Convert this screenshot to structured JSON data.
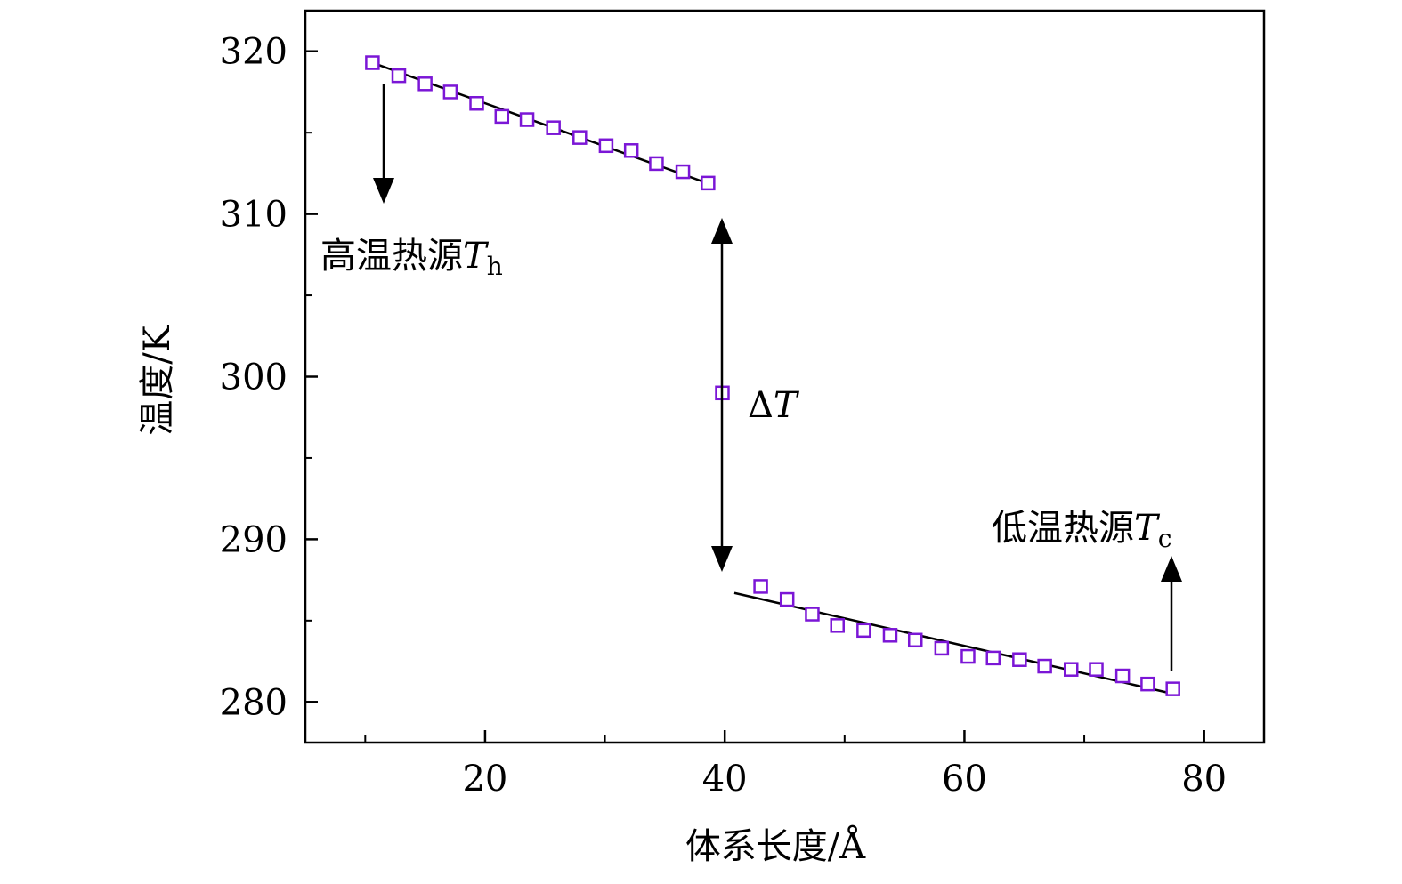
{
  "chart_data": {
    "type": "scatter",
    "xlabel": "体系长度/Å",
    "ylabel": "温度/K",
    "xlim": [
      5,
      85
    ],
    "ylim": [
      277.5,
      322.5
    ],
    "x_ticks": [
      20,
      40,
      60,
      80
    ],
    "x_tick_labels": [
      "20",
      "40",
      "60",
      "80"
    ],
    "x_minor_ticks": [
      10,
      30,
      50,
      70
    ],
    "y_ticks": [
      280,
      290,
      300,
      310,
      320
    ],
    "y_tick_labels": [
      "280",
      "290",
      "300",
      "310",
      "320"
    ],
    "y_minor_ticks": [
      285,
      295,
      305,
      315
    ],
    "grid": false,
    "marker": "open-square",
    "colors": {
      "marker": "#7B16D6",
      "line": "#000000",
      "axis": "#000000"
    },
    "series": [
      {
        "points": [
          [
            10.6,
            319.3
          ],
          [
            12.8,
            318.5
          ],
          [
            15.0,
            318.0
          ],
          [
            17.1,
            317.5
          ],
          [
            19.3,
            316.8
          ],
          [
            21.4,
            316.0
          ],
          [
            23.5,
            315.8
          ],
          [
            25.7,
            315.3
          ],
          [
            27.9,
            314.7
          ],
          [
            30.1,
            314.2
          ],
          [
            32.2,
            313.9
          ],
          [
            34.3,
            313.1
          ],
          [
            36.5,
            312.6
          ],
          [
            38.6,
            311.9
          ],
          [
            39.8,
            299.0
          ],
          [
            43.0,
            287.1
          ],
          [
            45.2,
            286.3
          ],
          [
            47.3,
            285.4
          ],
          [
            49.4,
            284.7
          ],
          [
            51.6,
            284.4
          ],
          [
            53.8,
            284.1
          ],
          [
            55.9,
            283.8
          ],
          [
            58.1,
            283.3
          ],
          [
            60.3,
            282.8
          ],
          [
            62.4,
            282.7
          ],
          [
            64.6,
            282.6
          ],
          [
            66.7,
            282.2
          ],
          [
            68.9,
            282.0
          ],
          [
            71.0,
            282.0
          ],
          [
            73.2,
            281.6
          ],
          [
            75.3,
            281.1
          ],
          [
            77.4,
            280.8
          ]
        ]
      }
    ],
    "fit_lines": [
      {
        "x": [
          10.6,
          38.9
        ],
        "y": [
          319.3,
          311.8
        ]
      },
      {
        "x": [
          40.8,
          77.4
        ],
        "y": [
          286.7,
          280.5
        ]
      }
    ],
    "annotations": {
      "hot_source": {
        "text": "高温热源",
        "symbol": "T",
        "subscript": "h"
      },
      "cold_source": {
        "text": "低温热源",
        "symbol": "T",
        "subscript": "c"
      },
      "delta_t": {
        "text": "Δ",
        "symbol": "T"
      }
    }
  }
}
